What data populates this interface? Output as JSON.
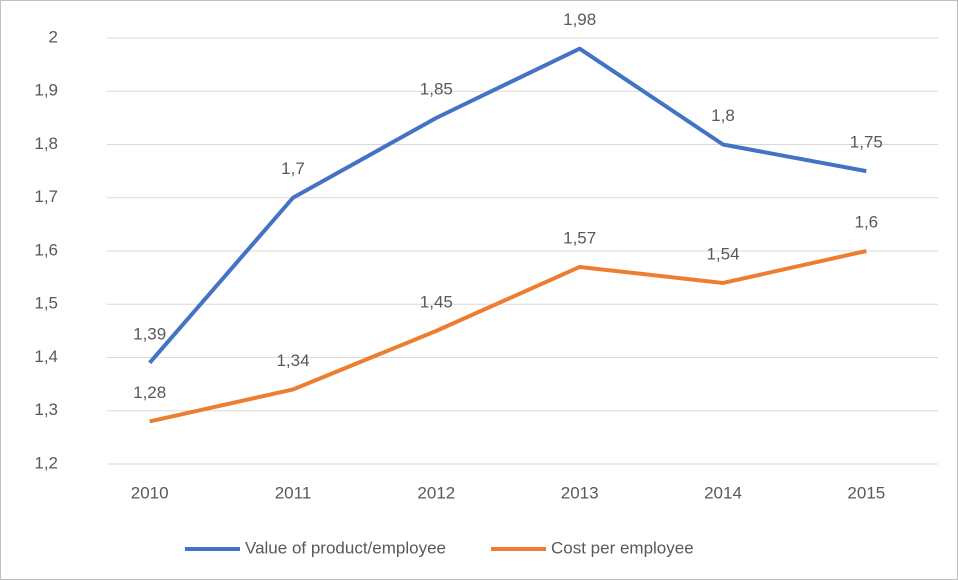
{
  "chart_data": {
    "type": "line",
    "categories": [
      "2010",
      "2011",
      "2012",
      "2013",
      "2014",
      "2015"
    ],
    "series": [
      {
        "name": "Value of product/employee",
        "color": "#4472c4",
        "values": [
          1.39,
          1.7,
          1.85,
          1.98,
          1.8,
          1.75
        ],
        "value_labels": [
          "1,39",
          "1,7",
          "1,85",
          "1,98",
          "1,8",
          "1,75"
        ]
      },
      {
        "name": "Cost per employee",
        "color": "#ed7d31",
        "values": [
          1.28,
          1.34,
          1.45,
          1.57,
          1.54,
          1.6
        ],
        "value_labels": [
          "1,28",
          "1,34",
          "1,45",
          "1,57",
          "1,54",
          "1,6"
        ]
      }
    ],
    "ylim": [
      1.2,
      2
    ],
    "yticks": [
      {
        "value": 1.2,
        "label": "1,2"
      },
      {
        "value": 1.3,
        "label": "1,3"
      },
      {
        "value": 1.4,
        "label": "1,4"
      },
      {
        "value": 1.5,
        "label": "1,5"
      },
      {
        "value": 1.6,
        "label": "1,6"
      },
      {
        "value": 1.7,
        "label": "1,7"
      },
      {
        "value": 1.8,
        "label": "1,8"
      },
      {
        "value": 1.9,
        "label": "1,9"
      },
      2
    ],
    "grid": true,
    "legend": "bottom"
  }
}
